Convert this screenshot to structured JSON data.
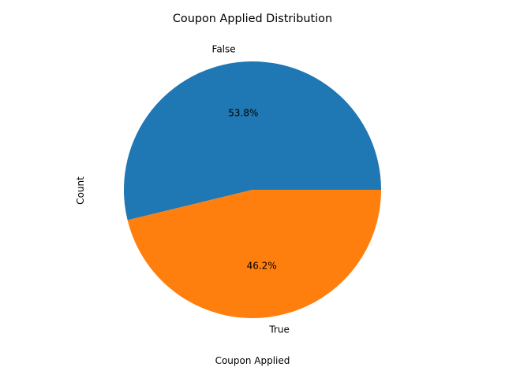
{
  "chart_data": {
    "type": "pie",
    "title": "Coupon Applied Distribution",
    "xlabel": "Coupon Applied",
    "ylabel": "Count",
    "labels": [
      "False",
      "True"
    ],
    "values": [
      53.8,
      46.2
    ],
    "percent_labels": [
      "53.8%",
      "46.2%"
    ],
    "colors": [
      "#1f77b4",
      "#ff7f0e"
    ]
  }
}
